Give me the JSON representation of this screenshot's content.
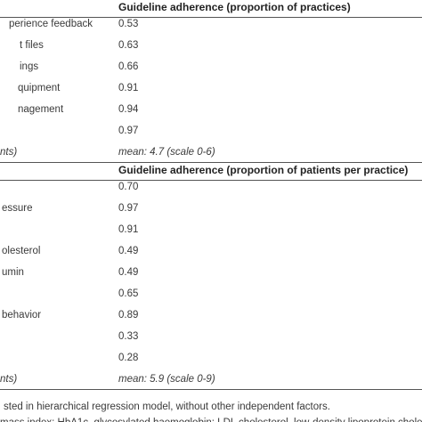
{
  "sections": [
    {
      "header": "Guideline adherence (proportion of practices)",
      "rows": [
        {
          "label": "perience feedback",
          "value": "0.53"
        },
        {
          "label": "t files",
          "value": "0.63"
        },
        {
          "label": "ings",
          "value": "0.66"
        },
        {
          "label": "quipment",
          "value": "0.91"
        },
        {
          "label": "nagement",
          "value": "0.94"
        },
        {
          "value": "0.97"
        }
      ],
      "summary": {
        "label": "nts)",
        "value": "mean: 4.7 (scale 0-6)"
      }
    },
    {
      "header": "Guideline adherence (proportion of patients per practice)",
      "rows": [
        {
          "value": "0.70"
        },
        {
          "label": "essure",
          "value": "0.97"
        },
        {
          "value": "0.91"
        },
        {
          "label": "olesterol",
          "value": "0.49"
        },
        {
          "label": "umin",
          "value": "0.49"
        },
        {
          "value": "0.65"
        },
        {
          "label": "behavior",
          "value": "0.89"
        },
        {
          "value": "0.33"
        },
        {
          "value": "0.28"
        }
      ],
      "summary": {
        "label": "nts)",
        "value": "mean: 5.9 (scale 0-9)"
      }
    }
  ],
  "footnotes": [
    "sted in hierarchical regression model, without other independent factors.",
    "mass index; HbA1c, glycosylated haemoglobin; LDL cholesterol, low-density lipoprotein cholestero"
  ]
}
